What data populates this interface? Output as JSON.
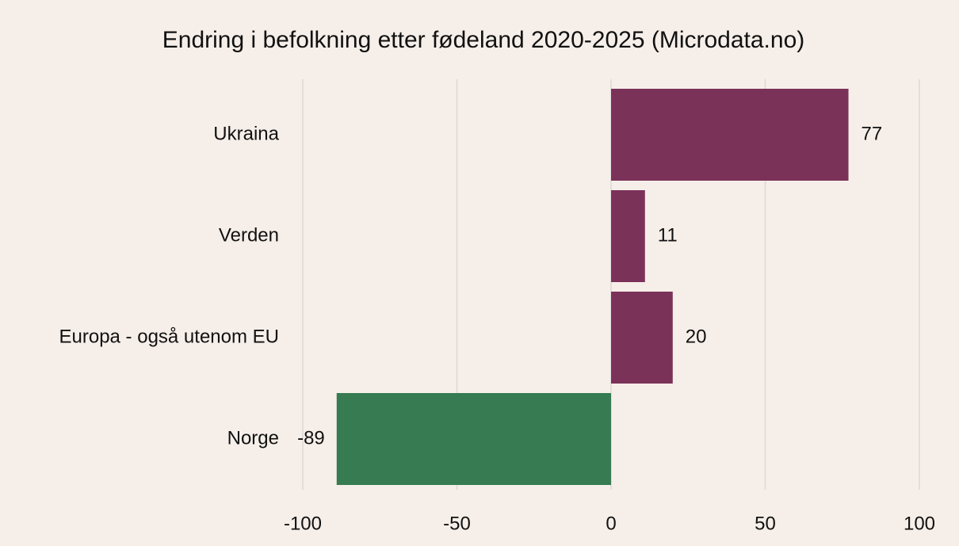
{
  "chart_data": {
    "type": "bar",
    "orientation": "horizontal",
    "title": "Endring i befolkning etter fødeland 2020-2025 (Microdata.no)",
    "categories": [
      "Ukraina",
      "Verden",
      "Europa - også utenom EU",
      "Norge"
    ],
    "values": [
      77,
      11,
      20,
      -89
    ],
    "colors": [
      "#7b3259",
      "#7b3259",
      "#7b3259",
      "#367b52"
    ],
    "xlim": [
      -100,
      100
    ],
    "xticks": [
      -100,
      -50,
      0,
      50,
      100
    ],
    "grid": true
  }
}
